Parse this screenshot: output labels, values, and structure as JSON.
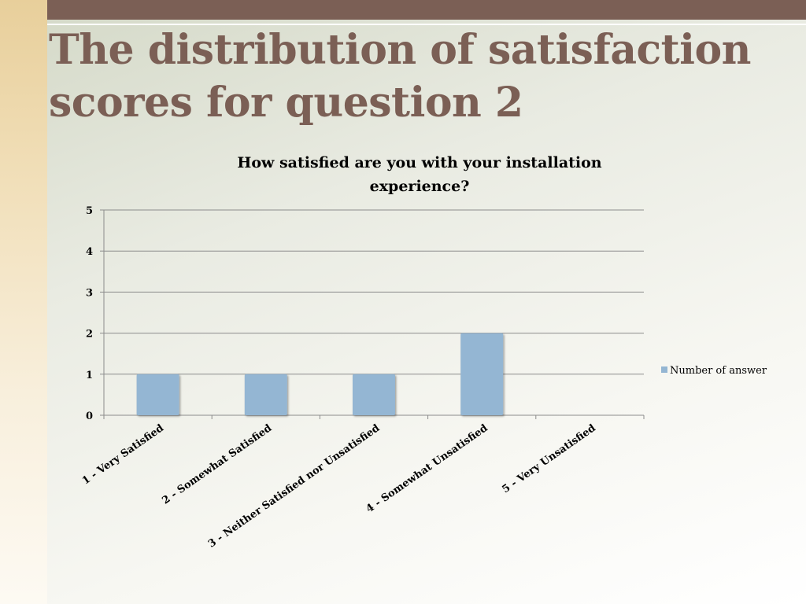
{
  "slide": {
    "title_line1": "The distribution of satisfaction",
    "title_line2": "scores for question 2"
  },
  "colors": {
    "accent_bar": "#7b5f55",
    "series_fill": "#94b6d3"
  },
  "chart_data": {
    "type": "bar",
    "title": "How satisfied are you with your installation experience?",
    "title_lines": [
      "How satisfied are you with your installation",
      "experience?"
    ],
    "categories": [
      "1 - Very Satisfied",
      "2 - Somewhat Satisfied",
      "3 - Neither Satisfied nor Unsatisfied",
      "4 - Somewhat Unsatisfied",
      "5 - Very Unsatisfied"
    ],
    "series": [
      {
        "name": "Number of answer",
        "values": [
          1,
          1,
          1,
          2,
          0
        ]
      }
    ],
    "ylim": [
      0,
      5
    ],
    "yticks": [
      0,
      1,
      2,
      3,
      4,
      5
    ],
    "grid": true,
    "legend_position": "right"
  }
}
